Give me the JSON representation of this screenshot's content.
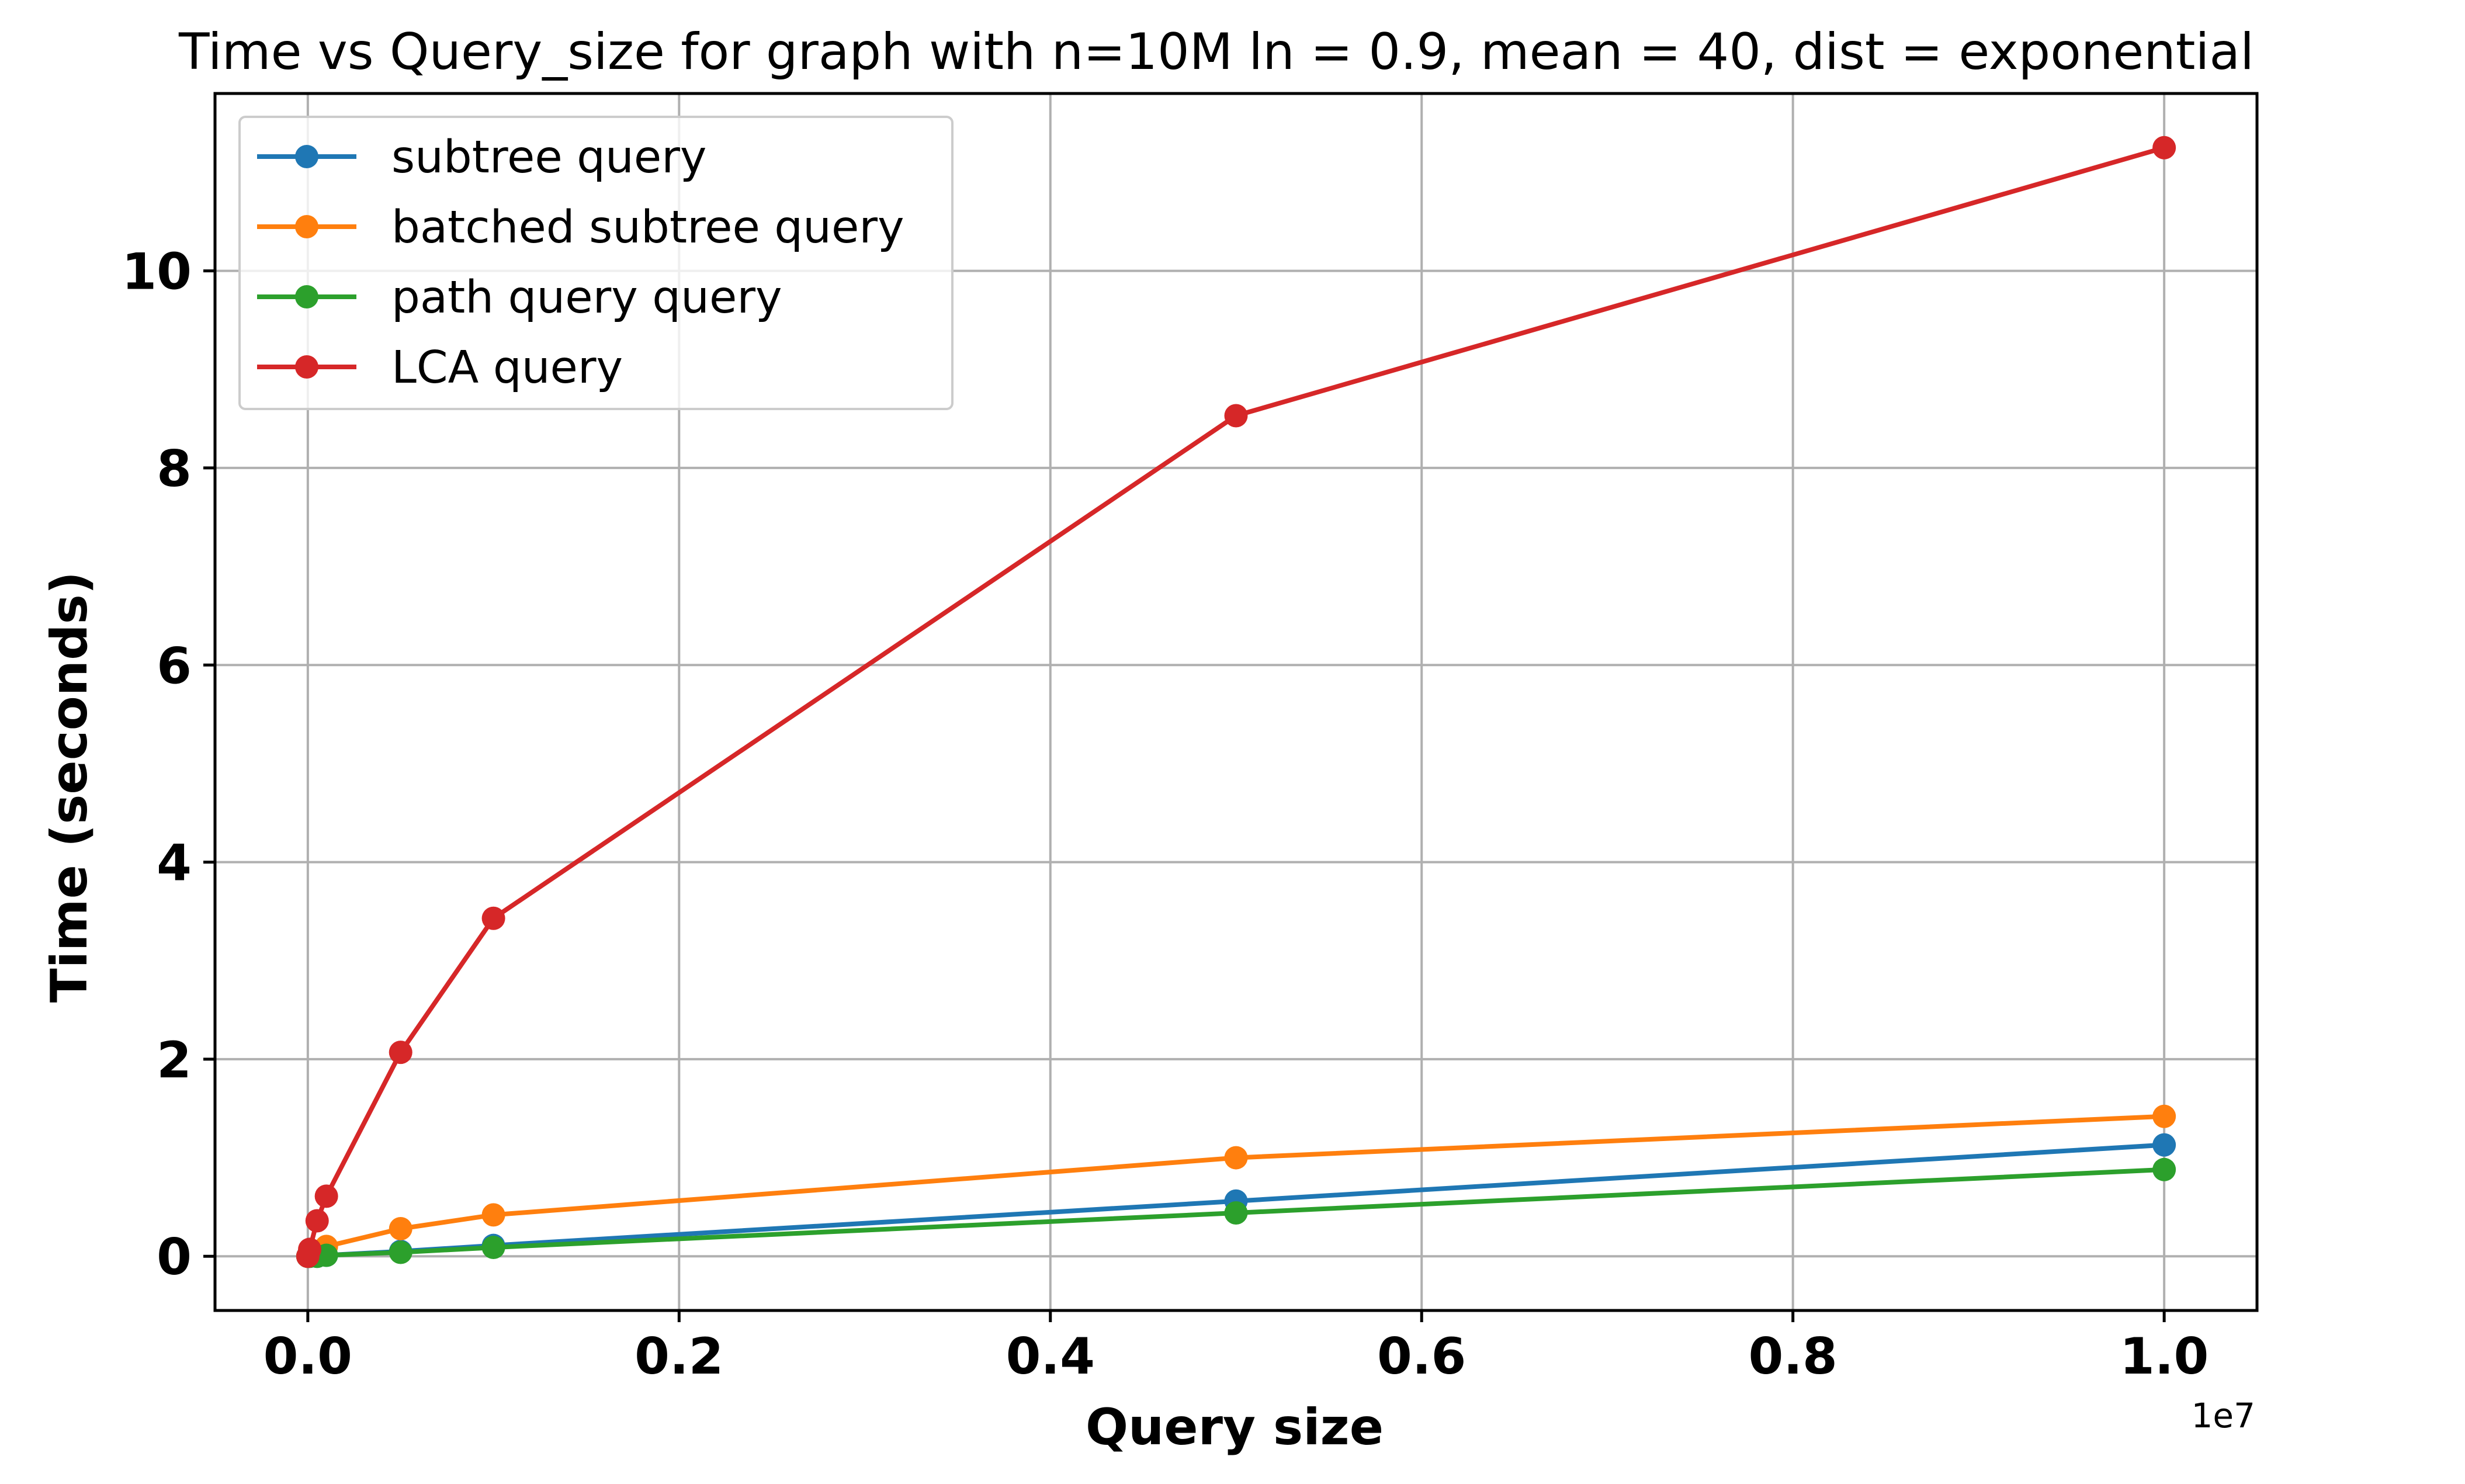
{
  "chart_data": {
    "type": "line",
    "title": "Time vs Query_size for graph with n=10M ln = 0.9, mean = 40, dist = exponential",
    "xlabel": "Query size",
    "ylabel": "Time (seconds)",
    "x_offset_label": "1e7",
    "xlim": [
      -0.05,
      1.05
    ],
    "ylim": [
      -0.55,
      11.8
    ],
    "x_ticks": [
      0.0,
      0.2,
      0.4,
      0.6,
      0.8,
      1.0
    ],
    "x_tick_labels": [
      "0.0",
      "0.2",
      "0.4",
      "0.6",
      "0.8",
      "1.0"
    ],
    "y_ticks": [
      0,
      2,
      4,
      6,
      8,
      10
    ],
    "y_tick_labels": [
      "0",
      "2",
      "4",
      "6",
      "8",
      "10"
    ],
    "grid": true,
    "legend_position": "top-left",
    "x": [
      0.0,
      0.001,
      0.005,
      0.01,
      0.05,
      0.1,
      0.5,
      1.0
    ],
    "series": [
      {
        "name": "subtree query",
        "color": "#1f77b4",
        "values": [
          0.0,
          0.0,
          0.0,
          0.01,
          0.05,
          0.11,
          0.56,
          1.13
        ]
      },
      {
        "name": "batched subtree query",
        "color": "#ff7f0e",
        "values": [
          0.0,
          0.02,
          0.03,
          0.1,
          0.28,
          0.42,
          1.0,
          1.42
        ]
      },
      {
        "name": "path query query",
        "color": "#2ca02c",
        "values": [
          0.0,
          0.0,
          0.0,
          0.01,
          0.04,
          0.09,
          0.44,
          0.88
        ]
      },
      {
        "name": "LCA query",
        "color": "#d62728",
        "values": [
          0.0,
          0.07,
          0.36,
          0.61,
          2.07,
          3.43,
          8.53,
          11.25
        ]
      }
    ]
  }
}
